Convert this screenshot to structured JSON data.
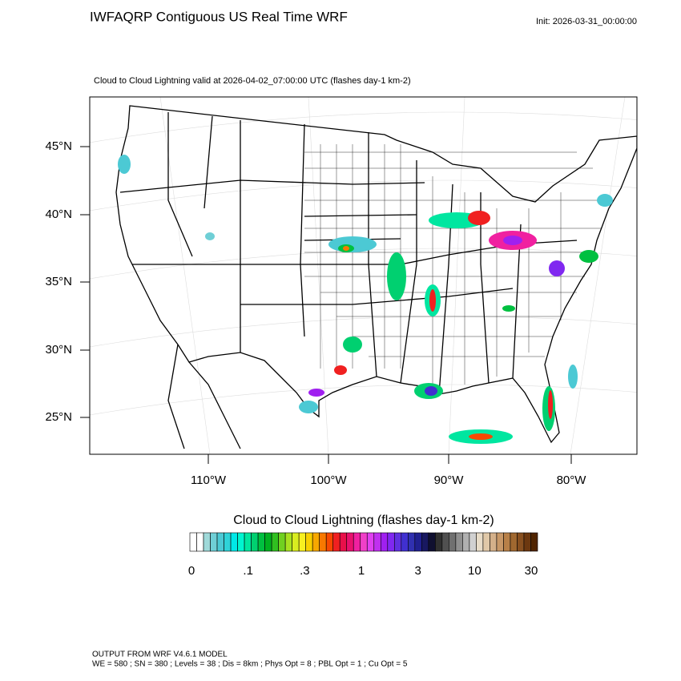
{
  "header": {
    "title": "IWFAQRP Contiguous US Real Time WRF",
    "init": "Init: 2026-03-31_00:00:00"
  },
  "map": {
    "subtitle": "Cloud to Cloud Lightning valid at 2026-04-02_07:00:00 UTC   (flashes day-1 km-2)",
    "lat_labels": [
      "45°N",
      "40°N",
      "35°N",
      "30°N",
      "25°N"
    ],
    "lon_labels": [
      "110°W",
      "100°W",
      "90°W",
      "80°W"
    ]
  },
  "colorbar": {
    "title": "Cloud to Cloud Lightning  (flashes day-1 km-2)",
    "labels": [
      "0",
      ".1",
      ".3",
      "1",
      "3",
      "10",
      "30"
    ],
    "colors": [
      "#ffffff",
      "#ffffff",
      "#9fd9d9",
      "#6fcfd6",
      "#4cc9d4",
      "#2fd3d8",
      "#00e8e8",
      "#00f5d0",
      "#00e6a0",
      "#00d070",
      "#00c040",
      "#00b020",
      "#30c020",
      "#70d020",
      "#a8e020",
      "#d8ec20",
      "#f8f020",
      "#f8d000",
      "#f8a800",
      "#f87800",
      "#f84800",
      "#f02020",
      "#e8104a",
      "#e8106e",
      "#f020a0",
      "#f040c8",
      "#e040f0",
      "#c030f0",
      "#a020f0",
      "#8028f0",
      "#6030e0",
      "#4030d0",
      "#3030b0",
      "#202090",
      "#181860",
      "#101030",
      "#303030",
      "#505050",
      "#707070",
      "#909090",
      "#b0b0b0",
      "#d0d0d0",
      "#e8dcc8",
      "#e0c8a8",
      "#d4b08a",
      "#c89868",
      "#b88048",
      "#a06830",
      "#885020",
      "#6c3810",
      "#502400"
    ]
  },
  "footer": {
    "line1": "OUTPUT FROM WRF V4.6.1 MODEL",
    "line2": "WE = 580 ; SN = 380 ; Levels = 38 ; Dis = 8km ; Phys Opt = 8 ; PBL Opt = 1 ; Cu Opt = 5"
  }
}
